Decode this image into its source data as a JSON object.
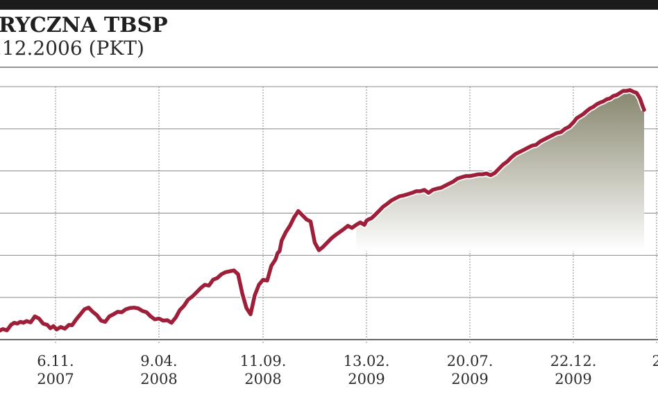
{
  "header": {
    "title": "RYCZNA TBSP",
    "subtitle": ".12.2006 (PKT)"
  },
  "chart_data": {
    "type": "line",
    "title": "RYCZNA TBSP",
    "subtitle": ".12.2006 (PKT)",
    "xlabel": "",
    "ylabel": "",
    "x_tick_labels": [
      [
        "6.11.",
        "2007"
      ],
      [
        "9.04.",
        "2008"
      ],
      [
        "11.09.",
        "2008"
      ],
      [
        "13.02.",
        "2009"
      ],
      [
        "20.07.",
        "2009"
      ],
      [
        "22.12.",
        "2009"
      ],
      [
        "2",
        ""
      ]
    ],
    "x_ticks_index": [
      0,
      1,
      2,
      3,
      4,
      5,
      6
    ],
    "x_range": [
      -0.55,
      5.85
    ],
    "y_range": [
      0,
      6
    ],
    "grid": true,
    "legend": "none",
    "series_color": "#9e1f3a",
    "fill_gradient": [
      "#ffffff",
      "#86856d"
    ],
    "series": [
      {
        "x": [
          -0.55,
          -0.51,
          -0.47,
          -0.43,
          -0.4,
          -0.37,
          -0.34,
          -0.31,
          -0.28,
          -0.24,
          -0.2,
          -0.16,
          -0.12,
          -0.08,
          -0.05,
          -0.02,
          0.01,
          0.05,
          0.09,
          0.13,
          0.16,
          0.2,
          0.24,
          0.28,
          0.32,
          0.36,
          0.4,
          0.44,
          0.48,
          0.52,
          0.56,
          0.6,
          0.64,
          0.68,
          0.72,
          0.76,
          0.8,
          0.84,
          0.88,
          0.92,
          0.96,
          1.0,
          1.04,
          1.08,
          1.12,
          1.16,
          1.2,
          1.24,
          1.28,
          1.32,
          1.36,
          1.4,
          1.44,
          1.48,
          1.52,
          1.56,
          1.6,
          1.64,
          1.68,
          1.72,
          1.76,
          1.8,
          1.84,
          1.88,
          1.92,
          1.96,
          2.0,
          2.04,
          2.08,
          2.12,
          2.14,
          2.16,
          2.18,
          2.2,
          2.22,
          2.26,
          2.3,
          2.34,
          2.38,
          2.42,
          2.46,
          2.5,
          2.54,
          2.58,
          2.62,
          2.66,
          2.7,
          2.74,
          2.78,
          2.82,
          2.86,
          2.9,
          2.94,
          2.98,
          3.0,
          3.02,
          3.05,
          3.08,
          3.12,
          3.16,
          3.2,
          3.24,
          3.28,
          3.32,
          3.36,
          3.4,
          3.44,
          3.48,
          3.52,
          3.56,
          3.6,
          3.64,
          3.68,
          3.72,
          3.76,
          3.8,
          3.84,
          3.88,
          3.92,
          3.96,
          4.0,
          4.04,
          4.08,
          4.12,
          4.16,
          4.2,
          4.24,
          4.28,
          4.32,
          4.36,
          4.4,
          4.44,
          4.48,
          4.52,
          4.56,
          4.6,
          4.64,
          4.68,
          4.72,
          4.76,
          4.8,
          4.84,
          4.88,
          4.92,
          4.96,
          5.0,
          5.04,
          5.08,
          5.12,
          5.16,
          5.2,
          5.24,
          5.28,
          5.32,
          5.36,
          5.4,
          5.44,
          5.48,
          5.52,
          5.56,
          5.6,
          5.64,
          5.68,
          5.72,
          5.76,
          5.8,
          5.83,
          5.85
        ],
        "y": [
          0.2,
          0.25,
          0.22,
          0.35,
          0.4,
          0.38,
          0.42,
          0.4,
          0.44,
          0.41,
          0.55,
          0.5,
          0.38,
          0.35,
          0.27,
          0.32,
          0.24,
          0.3,
          0.26,
          0.35,
          0.34,
          0.48,
          0.6,
          0.72,
          0.76,
          0.66,
          0.58,
          0.45,
          0.42,
          0.55,
          0.6,
          0.66,
          0.65,
          0.72,
          0.75,
          0.76,
          0.74,
          0.68,
          0.65,
          0.55,
          0.48,
          0.5,
          0.45,
          0.46,
          0.4,
          0.52,
          0.7,
          0.8,
          0.95,
          1.02,
          1.12,
          1.22,
          1.3,
          1.28,
          1.42,
          1.46,
          1.55,
          1.6,
          1.62,
          1.64,
          1.55,
          1.1,
          0.75,
          0.6,
          1.05,
          1.3,
          1.42,
          1.4,
          1.75,
          1.9,
          2.05,
          2.1,
          2.35,
          2.45,
          2.55,
          2.7,
          2.9,
          3.05,
          2.95,
          2.85,
          2.8,
          2.3,
          2.12,
          2.2,
          2.3,
          2.4,
          2.48,
          2.55,
          2.62,
          2.7,
          2.65,
          2.72,
          2.78,
          2.72,
          2.82,
          2.85,
          2.88,
          2.95,
          3.05,
          3.15,
          3.22,
          3.3,
          3.35,
          3.4,
          3.42,
          3.45,
          3.48,
          3.52,
          3.52,
          3.55,
          3.48,
          3.55,
          3.58,
          3.6,
          3.65,
          3.7,
          3.75,
          3.82,
          3.85,
          3.88,
          3.88,
          3.9,
          3.92,
          3.92,
          3.94,
          3.9,
          3.95,
          4.05,
          4.15,
          4.22,
          4.32,
          4.4,
          4.45,
          4.5,
          4.55,
          4.6,
          4.62,
          4.7,
          4.75,
          4.8,
          4.85,
          4.9,
          4.92,
          5.0,
          5.05,
          5.15,
          5.25,
          5.3,
          5.35,
          5.42,
          5.48,
          5.52,
          5.58,
          5.62,
          5.65,
          5.7,
          5.72,
          5.78,
          5.8,
          5.85,
          5.9,
          5.9,
          5.92,
          5.88,
          5.85,
          5.72,
          5.55,
          5.45
        ]
      }
    ]
  }
}
